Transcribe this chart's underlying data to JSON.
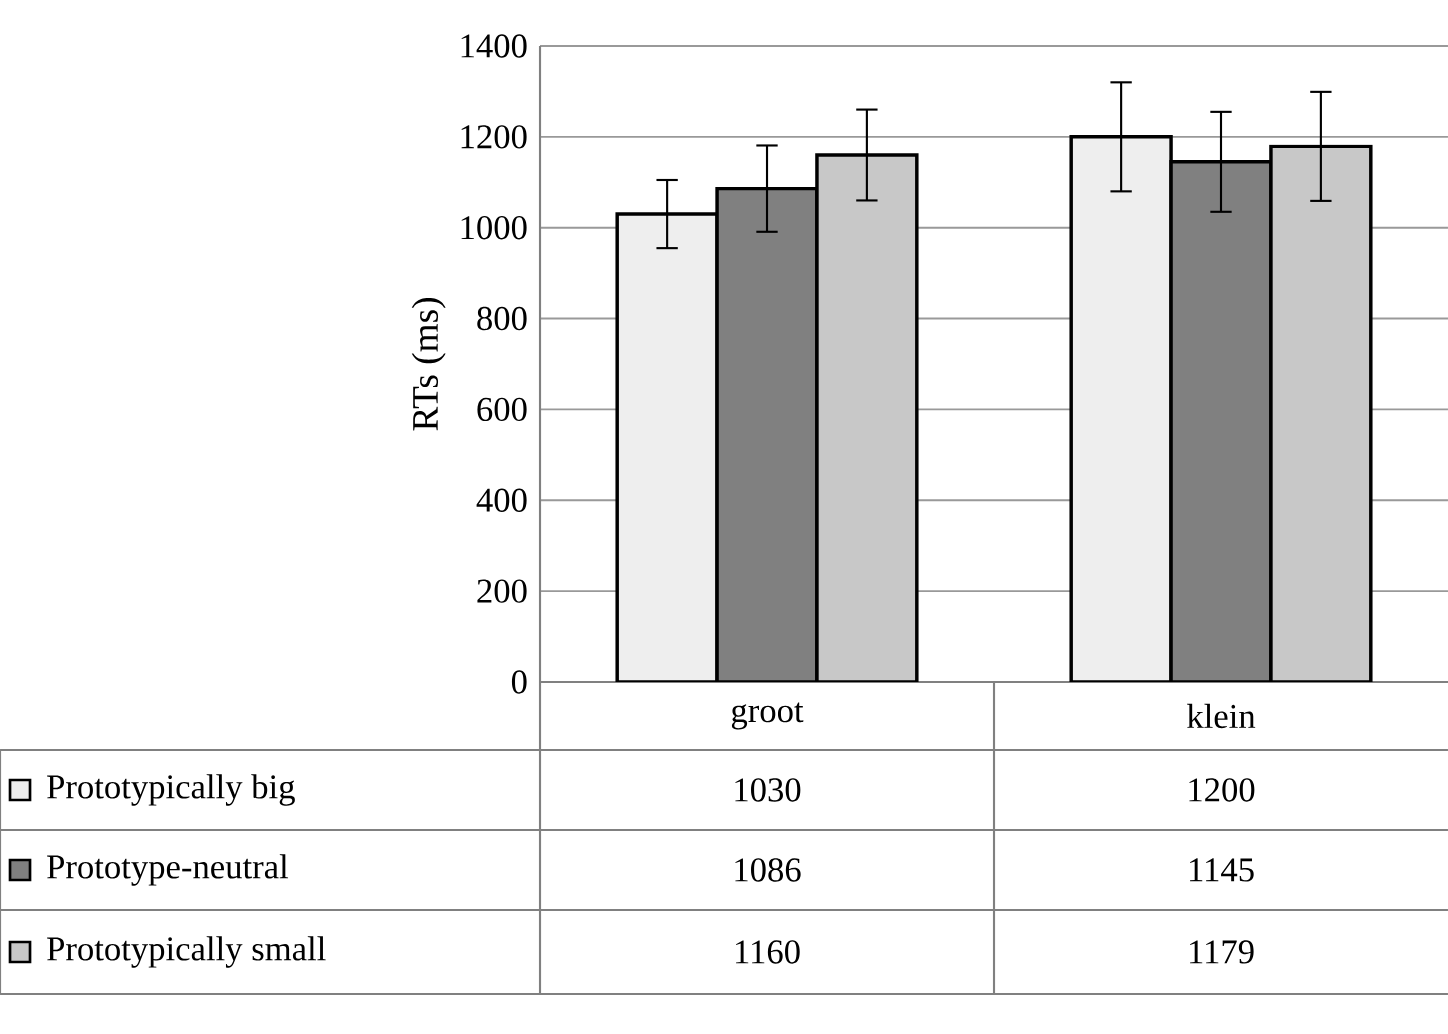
{
  "chart_data": {
    "type": "bar",
    "ylabel": "RTs (ms)",
    "categories": [
      "groot",
      "klein"
    ],
    "series": [
      {
        "name": "Prototypically big",
        "color": "#eeeeee",
        "values": [
          1030,
          1200
        ],
        "errors": [
          75,
          120
        ]
      },
      {
        "name": "Prototype-neutral",
        "color": "#808080",
        "values": [
          1086,
          1145
        ],
        "errors": [
          95,
          110
        ]
      },
      {
        "name": "Prototypically small",
        "color": "#c8c8c8",
        "values": [
          1160,
          1179
        ],
        "errors": [
          100,
          120
        ]
      }
    ],
    "ylim": [
      0,
      1400
    ],
    "yticks": [
      0,
      200,
      400,
      600,
      800,
      1000,
      1200,
      1400
    ],
    "grid": "y",
    "legend": "bottom left",
    "data_labels": true
  }
}
